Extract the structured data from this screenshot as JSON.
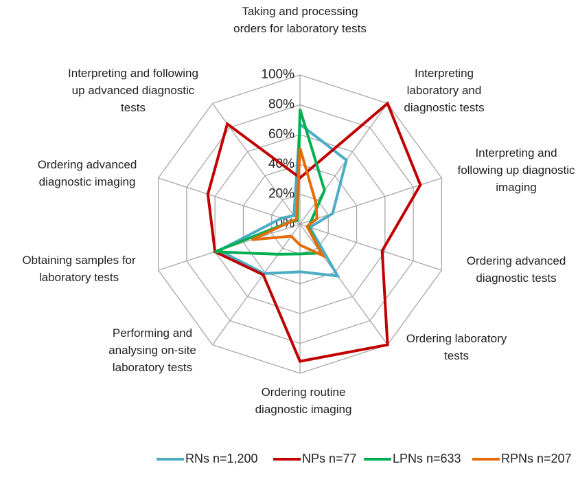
{
  "chart_data": {
    "type": "radar",
    "categories": [
      "Taking and processing orders for laboratory tests",
      "Interpreting laboratory and diagnostic tests",
      "Interpreting and following up diagnostic imaging",
      "Ordering advanced diagnostic tests",
      "Ordering laboratory tests",
      "Ordering routine diagnostic imaging",
      "Performing and analysing on-site laboratory tests",
      "Obtaining samples for laboratory tests",
      "Ordering advanced diagnostic imaging",
      "Interpreting and following up advanced diagnostic tests"
    ],
    "series": [
      {
        "name": "RNs n=1,200",
        "color": "#4bacc6",
        "values": [
          67,
          53,
          23,
          7,
          43,
          32,
          41,
          57,
          13,
          7
        ]
      },
      {
        "name": "NPs n=77",
        "color": "#c00000",
        "values": [
          31,
          100,
          85,
          58,
          100,
          92,
          42,
          60,
          65,
          83
        ]
      },
      {
        "name": "LPNs n=633",
        "color": "#00b050",
        "values": [
          77,
          28,
          8,
          6,
          24,
          20,
          25,
          60,
          6,
          3
        ]
      },
      {
        "name": "RPNs n=207",
        "color": "#e46c0a",
        "values": [
          51,
          18,
          12,
          5,
          26,
          14,
          10,
          34,
          6,
          4
        ]
      }
    ],
    "ylim": [
      0,
      100
    ],
    "yticks": [
      {
        "value": 0,
        "label": "0%"
      },
      {
        "value": 20,
        "label": "20%"
      },
      {
        "value": 40,
        "label": "40%"
      },
      {
        "value": 60,
        "label": "60%"
      },
      {
        "value": 80,
        "label": "80%"
      },
      {
        "value": 100,
        "label": "100%"
      }
    ],
    "grid": true,
    "legend": "bottom"
  }
}
